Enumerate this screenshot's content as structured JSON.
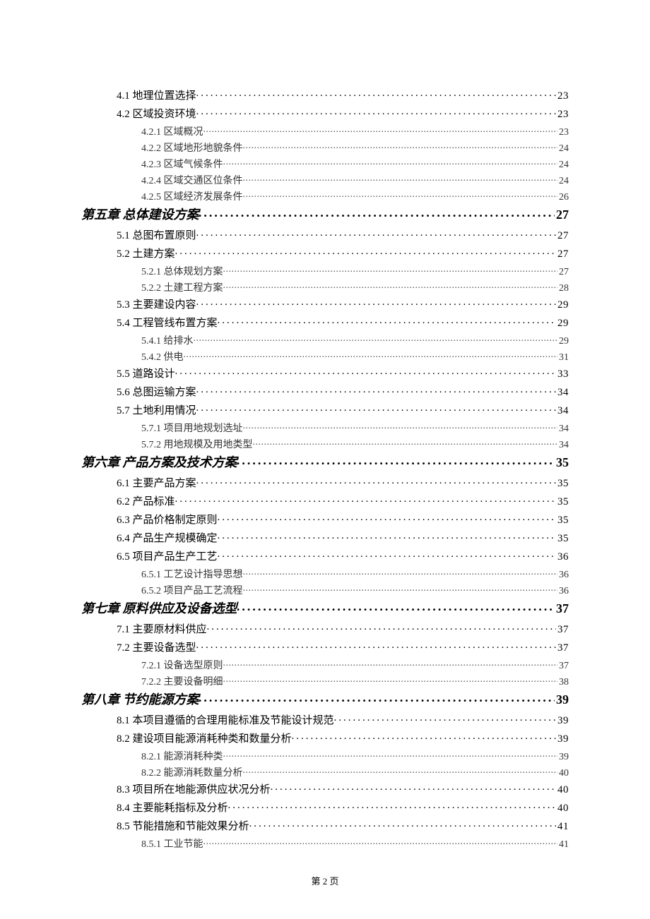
{
  "footer": "第 2 页",
  "toc": [
    {
      "level": 2,
      "title": "4.1 地理位置选择",
      "page": "23"
    },
    {
      "level": 2,
      "title": "4.2 区域投资环境",
      "page": "23"
    },
    {
      "level": 3,
      "title": "4.2.1 区域概况",
      "page": "23"
    },
    {
      "level": 3,
      "title": "4.2.2 区域地形地貌条件",
      "page": "24"
    },
    {
      "level": 3,
      "title": "4.2.3 区域气候条件",
      "page": "24"
    },
    {
      "level": 3,
      "title": "4.2.4 区域交通区位条件",
      "page": "24"
    },
    {
      "level": 3,
      "title": "4.2.5 区域经济发展条件",
      "page": "26"
    },
    {
      "level": 1,
      "title": "第五章 总体建设方案",
      "page": "27"
    },
    {
      "level": 2,
      "title": "5.1 总图布置原则",
      "page": "27"
    },
    {
      "level": 2,
      "title": "5.2 土建方案",
      "page": "27"
    },
    {
      "level": 3,
      "title": "5.2.1 总体规划方案",
      "page": "27"
    },
    {
      "level": 3,
      "title": "5.2.2 土建工程方案",
      "page": "28"
    },
    {
      "level": 2,
      "title": "5.3 主要建设内容",
      "page": "29"
    },
    {
      "level": 2,
      "title": "5.4 工程管线布置方案",
      "page": "29"
    },
    {
      "level": 3,
      "title": "5.4.1 给排水",
      "page": "29"
    },
    {
      "level": 3,
      "title": "5.4.2 供电",
      "page": "31"
    },
    {
      "level": 2,
      "title": "5.5 道路设计",
      "page": "33"
    },
    {
      "level": 2,
      "title": "5.6 总图运输方案",
      "page": "34"
    },
    {
      "level": 2,
      "title": "5.7 土地利用情况",
      "page": "34"
    },
    {
      "level": 3,
      "title": "5.7.1 项目用地规划选址",
      "page": "34"
    },
    {
      "level": 3,
      "title": "5.7.2 用地规模及用地类型",
      "page": "34"
    },
    {
      "level": 1,
      "title": "第六章 产品方案及技术方案",
      "page": "35"
    },
    {
      "level": 2,
      "title": "6.1 主要产品方案",
      "page": "35"
    },
    {
      "level": 2,
      "title": "6.2 产品标准",
      "page": "35"
    },
    {
      "level": 2,
      "title": "6.3 产品价格制定原则",
      "page": "35"
    },
    {
      "level": 2,
      "title": "6.4 产品生产规模确定",
      "page": "35"
    },
    {
      "level": 2,
      "title": "6.5 项目产品生产工艺",
      "page": "36"
    },
    {
      "level": 3,
      "title": "6.5.1 工艺设计指导思想",
      "page": "36"
    },
    {
      "level": 3,
      "title": "6.5.2 项目产品工艺流程",
      "page": "36"
    },
    {
      "level": 1,
      "title": "第七章 原料供应及设备选型",
      "page": "37"
    },
    {
      "level": 2,
      "title": "7.1 主要原材料供应",
      "page": "37"
    },
    {
      "level": 2,
      "title": "7.2 主要设备选型",
      "page": "37"
    },
    {
      "level": 3,
      "title": "7.2.1 设备选型原则",
      "page": "37"
    },
    {
      "level": 3,
      "title": "7.2.2 主要设备明细",
      "page": "38"
    },
    {
      "level": 1,
      "title": "第八章 节约能源方案",
      "page": "39"
    },
    {
      "level": 2,
      "title": "8.1 本项目遵循的合理用能标准及节能设计规范",
      "page": "39"
    },
    {
      "level": 2,
      "title": "8.2 建设项目能源消耗种类和数量分析",
      "page": "39"
    },
    {
      "level": 3,
      "title": "8.2.1 能源消耗种类",
      "page": "39"
    },
    {
      "level": 3,
      "title": "8.2.2 能源消耗数量分析",
      "page": "40"
    },
    {
      "level": 2,
      "title": "8.3 项目所在地能源供应状况分析",
      "page": "40"
    },
    {
      "level": 2,
      "title": "8.4 主要能耗指标及分析",
      "page": "40"
    },
    {
      "level": 2,
      "title": "8.5 节能措施和节能效果分析",
      "page": "41"
    },
    {
      "level": 3,
      "title": "8.5.1 工业节能",
      "page": "41"
    }
  ]
}
